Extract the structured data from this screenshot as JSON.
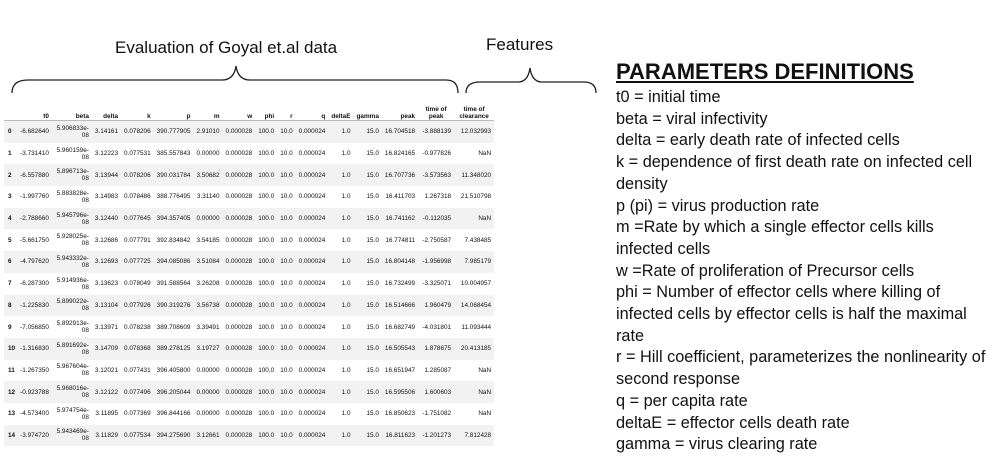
{
  "table": {
    "title": "Evaluation of Goyal et.al data",
    "features_label": "Features",
    "columns": [
      "",
      "t0",
      "beta",
      "delta",
      "k",
      "p",
      "m",
      "w",
      "phi",
      "r",
      "q",
      "deltaE",
      "gamma",
      "peak",
      "time of peak",
      "time of clearance"
    ],
    "rows": [
      [
        "0",
        "-6.682640",
        "5.906833e-08",
        "3.14161",
        "0.078206",
        "390.777905",
        "2.91010",
        "0.000028",
        "100.0",
        "10.0",
        "0.000024",
        "1.0",
        "15.0",
        "16.704518",
        "-3.888139",
        "12.032993"
      ],
      [
        "1",
        "-3.731410",
        "5.960159e-08",
        "3.12223",
        "0.077531",
        "385.557843",
        "0.00000",
        "0.000028",
        "100.0",
        "10.0",
        "0.000024",
        "1.0",
        "15.0",
        "16.824165",
        "-0.977826",
        "NaN"
      ],
      [
        "2",
        "-6.557880",
        "5.896713e-08",
        "3.13944",
        "0.078206",
        "390.031784",
        "3.50682",
        "0.000028",
        "100.0",
        "10.0",
        "0.000024",
        "1.0",
        "15.0",
        "16.707736",
        "-3.573563",
        "11.348020"
      ],
      [
        "3",
        "-1.997760",
        "5.883828e-08",
        "3.14983",
        "0.078486",
        "388.776495",
        "3.31140",
        "0.000028",
        "100.0",
        "10.0",
        "0.000024",
        "1.0",
        "15.0",
        "16.411703",
        "1.267318",
        "21.510798"
      ],
      [
        "4",
        "-2.788660",
        "5.945796e-08",
        "3.12440",
        "0.077645",
        "394.357405",
        "0.00000",
        "0.000028",
        "100.0",
        "10.0",
        "0.000024",
        "1.0",
        "15.0",
        "16.741162",
        "-0.112035",
        "NaN"
      ],
      [
        "5",
        "-5.661750",
        "5.928025e-08",
        "3.12686",
        "0.077791",
        "392.834842",
        "3.54185",
        "0.000028",
        "100.0",
        "10.0",
        "0.000024",
        "1.0",
        "15.0",
        "16.774811",
        "-2.750587",
        "7.438485"
      ],
      [
        "6",
        "-4.797620",
        "5.943332e-08",
        "3.12693",
        "0.077725",
        "394.085086",
        "3.51084",
        "0.000028",
        "100.0",
        "10.0",
        "0.000024",
        "1.0",
        "15.0",
        "16.804148",
        "-1.956998",
        "7.985179"
      ],
      [
        "7",
        "-6.287300",
        "5.914936e-08",
        "3.13623",
        "0.078049",
        "391.588564",
        "3.26208",
        "0.000028",
        "100.0",
        "10.0",
        "0.000024",
        "1.0",
        "15.0",
        "16.732499",
        "-3.325071",
        "10.004957"
      ],
      [
        "8",
        "-1.225830",
        "5.899022e-08",
        "3.13104",
        "0.077926",
        "390.319276",
        "3.56738",
        "0.000028",
        "100.0",
        "10.0",
        "0.000024",
        "1.0",
        "15.0",
        "16.514666",
        "1.960479",
        "14.068454"
      ],
      [
        "9",
        "-7.056850",
        "5.892913e-08",
        "3.13971",
        "0.078238",
        "389.708609",
        "3.39491",
        "0.000028",
        "100.0",
        "10.0",
        "0.000024",
        "1.0",
        "15.0",
        "16.682749",
        "-4.031801",
        "11.093444"
      ],
      [
        "10",
        "-1.316830",
        "5.891692e-08",
        "3.14709",
        "0.078368",
        "389.278125",
        "3.19727",
        "0.000028",
        "100.0",
        "10.0",
        "0.000024",
        "1.0",
        "15.0",
        "16.505543",
        "1.878675",
        "20.413185"
      ],
      [
        "11",
        "-1.267350",
        "5.967604e-08",
        "3.12021",
        "0.077431",
        "396.405800",
        "0.00000",
        "0.000028",
        "100.0",
        "10.0",
        "0.000024",
        "1.0",
        "15.0",
        "16.651947",
        "1.285087",
        "NaN"
      ],
      [
        "12",
        "-0.923788",
        "5.968016e-08",
        "3.12122",
        "0.077496",
        "396.205044",
        "0.00000",
        "0.000028",
        "100.0",
        "10.0",
        "0.000024",
        "1.0",
        "15.0",
        "16.595506",
        "1.600603",
        "NaN"
      ],
      [
        "13",
        "-4.573400",
        "5.974754e-08",
        "3.11895",
        "0.077369",
        "396.844166",
        "0.00000",
        "0.000028",
        "100.0",
        "10.0",
        "0.000024",
        "1.0",
        "15.0",
        "16.850623",
        "-1.751082",
        "NaN"
      ],
      [
        "14",
        "-3.974720",
        "5.943469e-08",
        "3.11829",
        "0.077534",
        "394.275690",
        "3.12661",
        "0.000028",
        "100.0",
        "10.0",
        "0.000024",
        "1.0",
        "15.0",
        "16.811623",
        "-1.201273",
        "7.812428"
      ]
    ]
  },
  "definitions": {
    "heading": "PARAMETERS DEFINITIONS",
    "items": [
      "t0 = initial time",
      "beta = viral infectivity",
      "delta = early death rate of infected cells",
      "k = dependence of first death rate on infected cell density",
      "p (pi) = virus production rate",
      "m =Rate by which a single effector cells kills infected cells",
      "w =Rate of proliferation of Precursor cells",
      "phi = Number of effector cells where killing of infected cells by effector cells is half the maximal rate",
      "r = Hill coefficient, parameterizes the nonlinearity of second response",
      "q = per capita rate",
      "deltaE = effector cells death rate",
      "gamma = virus clearing rate"
    ]
  }
}
